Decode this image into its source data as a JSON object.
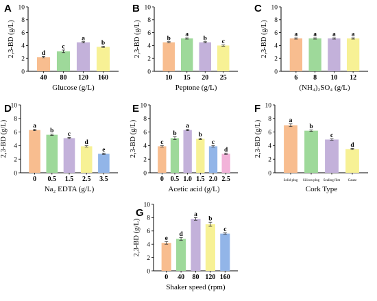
{
  "colors": [
    "#f8bd8f",
    "#9ed99a",
    "#c3b1da",
    "#f7f195",
    "#92b5e8",
    "#f2b3d9"
  ],
  "chart_data": [
    {
      "type": "bar",
      "panel": "A",
      "categories": [
        "40",
        "80",
        "120",
        "160"
      ],
      "values": [
        2.2,
        3.1,
        4.5,
        3.8
      ],
      "errors": [
        0.1,
        0.2,
        0.1,
        0.1
      ],
      "significance": [
        "d",
        "c",
        "a",
        "b"
      ],
      "xlabel": "Glucose (g/L)",
      "ylabel": "2,3-BD (g/L)",
      "ylim": [
        0,
        10
      ],
      "yticks": [
        "0",
        "2",
        "4",
        "6",
        "8",
        "10"
      ]
    },
    {
      "type": "bar",
      "panel": "B",
      "categories": [
        "10",
        "15",
        "20",
        "25"
      ],
      "values": [
        4.5,
        5.1,
        4.5,
        4.0
      ],
      "errors": [
        0.1,
        0.1,
        0.1,
        0.1
      ],
      "significance": [
        "b",
        "a",
        "b",
        "c"
      ],
      "xlabel": "Peptone (g/L)",
      "ylabel": "2,3-BD (g/L)",
      "ylim": [
        0,
        10
      ],
      "yticks": [
        "0",
        "2",
        "4",
        "6",
        "8",
        "10"
      ]
    },
    {
      "type": "bar",
      "panel": "C",
      "categories": [
        "6",
        "8",
        "10",
        "12"
      ],
      "values": [
        5.1,
        5.1,
        5.1,
        5.1
      ],
      "errors": [
        0.1,
        0.1,
        0.1,
        0.1
      ],
      "significance": [
        "a",
        "a",
        "a",
        "a"
      ],
      "xlabel": "(NH₄)₂SO₄ (g/L)",
      "ylabel": "2,3-BD (g/L)",
      "ylim": [
        0,
        10
      ],
      "yticks": [
        "0",
        "2",
        "4",
        "6",
        "8",
        "10"
      ]
    },
    {
      "type": "bar",
      "panel": "D",
      "categories": [
        "0",
        "0.5",
        "1.5",
        "2.5",
        "3.5"
      ],
      "values": [
        6.3,
        5.6,
        5.1,
        3.9,
        2.8
      ],
      "errors": [
        0.1,
        0.1,
        0.1,
        0.1,
        0.1
      ],
      "significance": [
        "a",
        "b",
        "c",
        "d",
        "e"
      ],
      "xlabel": "Na₂ EDTA (g/L)",
      "ylabel": "2,3-BD (g/L)",
      "ylim": [
        0,
        10
      ],
      "yticks": [
        "0",
        "2",
        "4",
        "6",
        "8",
        "10"
      ]
    },
    {
      "type": "bar",
      "panel": "E",
      "categories": [
        "0",
        "0.5",
        "1.0",
        "1.5",
        "2.0",
        "2.5"
      ],
      "values": [
        3.9,
        5.1,
        6.3,
        5.0,
        3.9,
        2.8
      ],
      "errors": [
        0.1,
        0.2,
        0.1,
        0.1,
        0.1,
        0.1
      ],
      "significance": [
        "c",
        "b",
        "a",
        "b",
        "c",
        "d"
      ],
      "xlabel": "Acetic acid (g/L)",
      "ylabel": "2,3-BD (g/L)",
      "ylim": [
        0,
        10
      ],
      "yticks": [
        "0",
        "2",
        "4",
        "6",
        "8",
        "10"
      ]
    },
    {
      "type": "bar",
      "panel": "F",
      "categories": [
        "Solid plug",
        "Silicon plug",
        "Sealing film",
        "Gauze"
      ],
      "values": [
        7.0,
        6.2,
        4.9,
        3.5
      ],
      "errors": [
        0.2,
        0.1,
        0.1,
        0.1
      ],
      "significance": [
        "a",
        "b",
        "c",
        "d"
      ],
      "xlabel": "Cork Type",
      "ylabel": "2,3-BD (g/L)",
      "ylim": [
        0,
        10
      ],
      "yticks": [
        "0",
        "2",
        "4",
        "6",
        "8",
        "10"
      ]
    },
    {
      "type": "bar",
      "panel": "G",
      "categories": [
        "0",
        "40",
        "80",
        "120",
        "160"
      ],
      "values": [
        4.2,
        4.8,
        7.8,
        7.0,
        5.6
      ],
      "errors": [
        0.2,
        0.2,
        0.2,
        0.3,
        0.1
      ],
      "significance": [
        "e",
        "d",
        "a",
        "b",
        "c"
      ],
      "xlabel": "Shaker speed (rpm)",
      "ylabel": "2,3-BD (g/L)",
      "ylim": [
        0,
        10
      ],
      "yticks": [
        "0",
        "2",
        "4",
        "6",
        "8",
        "10"
      ]
    }
  ]
}
